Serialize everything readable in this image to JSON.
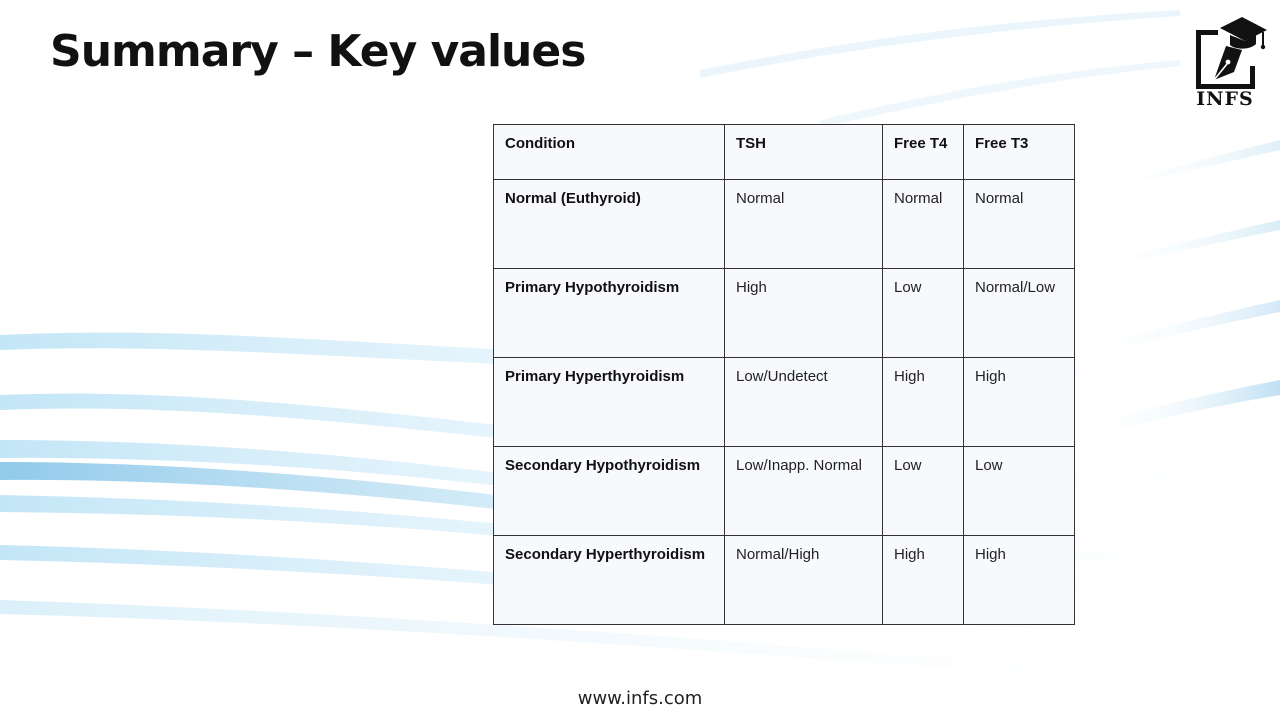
{
  "slide": {
    "title": "Summary – Key values",
    "footer_url": "www.infs.com"
  },
  "logo": {
    "text": "INFS",
    "icon": "graduation-cap-pen-icon"
  },
  "table": {
    "headers": [
      "Condition",
      "TSH",
      "Free T4",
      "Free T3"
    ],
    "rows": [
      [
        "Normal (Euthyroid)",
        "Normal",
        "Normal",
        "Normal"
      ],
      [
        "Primary Hypothyroidism",
        "High",
        "Low",
        "Normal/Low"
      ],
      [
        "Primary Hyperthyroidism",
        "Low/Undetect",
        "High",
        "High"
      ],
      [
        "Secondary Hypothyroidism",
        "Low/Inapp. Normal",
        "Low",
        "Low"
      ],
      [
        "Secondary Hyperthyroidism",
        "Normal/High",
        "High",
        "High"
      ]
    ]
  },
  "colors": {
    "accent_wave": "#7fc4e8",
    "table_fill": "#f7f9fd",
    "border": "#333333"
  }
}
